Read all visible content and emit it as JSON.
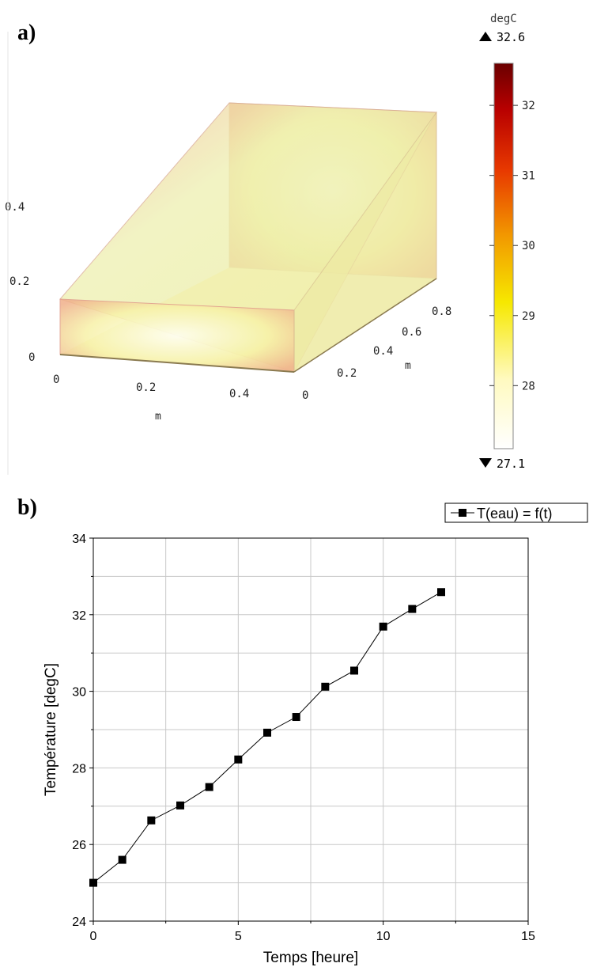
{
  "panels": {
    "a_label": "a)",
    "b_label": "b)"
  },
  "colors": {
    "line": "#000000",
    "grid": "#c8c8c8",
    "colormap": [
      "#ffffff",
      "#fff8b0",
      "#f6e800",
      "#f29a00",
      "#e83a00",
      "#b80000",
      "#6a0000"
    ]
  },
  "chart_data": [
    {
      "type": "heatmap",
      "title": "",
      "colorbar": {
        "unit": "degC",
        "max": 32.6,
        "min": 27.1,
        "max_label": "32.6",
        "min_label": "27.1",
        "ticks": [
          "32",
          "31",
          "30",
          "29",
          "28"
        ]
      },
      "axes": {
        "x": {
          "label": "m",
          "ticks": [
            "0",
            "0.2",
            "0.4"
          ]
        },
        "y": {
          "label": "m",
          "ticks": [
            "0",
            "0.2",
            "0.4",
            "0.6",
            "0.8"
          ]
        },
        "z": {
          "label": "",
          "ticks": [
            "0",
            "0.2",
            "0.4"
          ]
        }
      }
    },
    {
      "type": "line",
      "title": "",
      "xlabel": "Temps [heure]",
      "ylabel": "Température [degC]",
      "xlim": [
        0,
        15
      ],
      "ylim": [
        24,
        34
      ],
      "x_ticks": [
        0,
        5,
        10,
        15
      ],
      "y_ticks": [
        24,
        26,
        28,
        30,
        32,
        34
      ],
      "grid": true,
      "legend_position": "top-right",
      "series": [
        {
          "name": "T(eau) = f(t)",
          "marker": "square",
          "x": [
            0,
            1,
            2,
            3,
            4,
            5,
            6,
            7,
            8,
            9,
            10,
            11,
            12
          ],
          "y": [
            25.0,
            25.6,
            26.63,
            27.02,
            27.5,
            28.22,
            28.92,
            29.33,
            30.12,
            30.54,
            31.69,
            32.15,
            32.59
          ]
        }
      ]
    }
  ]
}
